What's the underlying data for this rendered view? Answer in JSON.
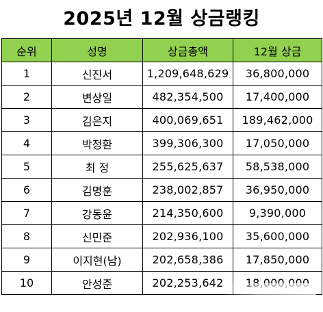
{
  "title": "2025년 12월 상금랭킹",
  "columns": {
    "rank": "순위",
    "name": "성명",
    "total": "상금총액",
    "december": "12월 상금"
  },
  "rows": [
    {
      "rank": "1",
      "name": "신진서",
      "total": "1,209,648,629",
      "december": "36,800,000"
    },
    {
      "rank": "2",
      "name": "변상일",
      "total": "482,354,500",
      "december": "17,400,000"
    },
    {
      "rank": "3",
      "name": "김은지",
      "total": "400,069,651",
      "december": "189,462,000"
    },
    {
      "rank": "4",
      "name": "박정환",
      "total": "399,306,300",
      "december": "17,050,000"
    },
    {
      "rank": "5",
      "name": "최 정",
      "total": "255,625,637",
      "december": "58,538,000"
    },
    {
      "rank": "6",
      "name": "김명훈",
      "total": "238,002,857",
      "december": "36,950,000"
    },
    {
      "rank": "7",
      "name": "강동윤",
      "total": "214,350,600",
      "december": "9,390,000"
    },
    {
      "rank": "8",
      "name": "신민준",
      "total": "202,936,100",
      "december": "35,600,000"
    },
    {
      "rank": "9",
      "name": "이지현(남)",
      "total": "202,658,386",
      "december": "17,850,000"
    },
    {
      "rank": "10",
      "name": "안성준",
      "total": "202,253,642",
      "december": "18,000,000"
    }
  ]
}
